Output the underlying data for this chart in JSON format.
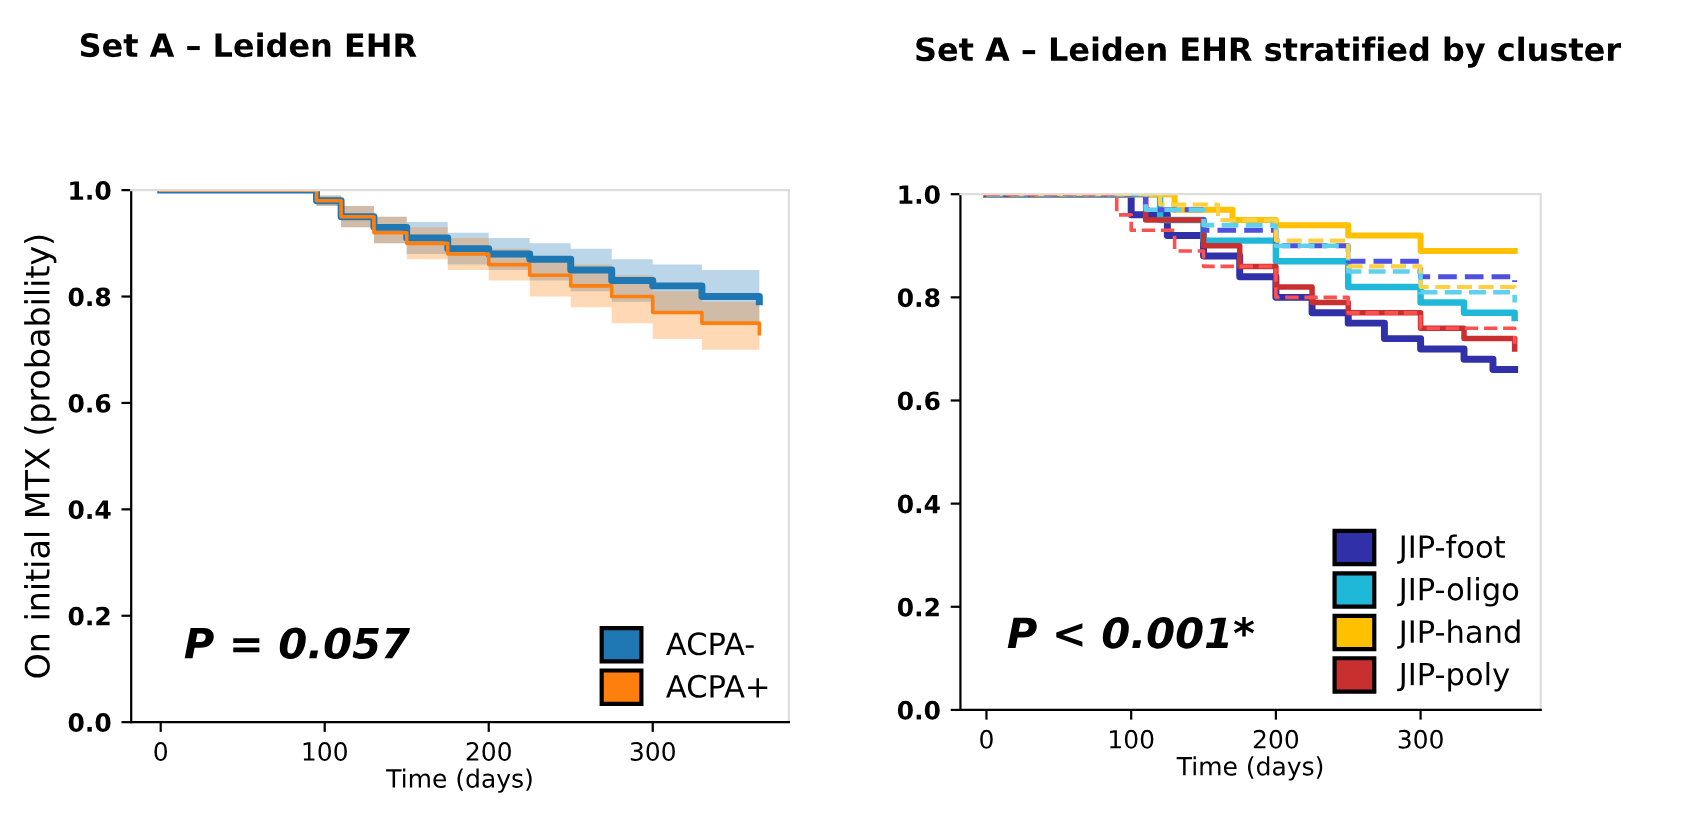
{
  "chart_data": [
    {
      "type": "step",
      "title": "Set A – Leiden EHR",
      "xlabel": "Time (days)",
      "ylabel": "On initial MTX (probability)",
      "xlim": [
        -18,
        383
      ],
      "ylim": [
        0.0,
        1.0
      ],
      "xticks": [
        0,
        100,
        200,
        300
      ],
      "yticks": [
        {
          "value": 0.0,
          "label": "0.0"
        },
        {
          "value": 0.2,
          "label": "0.2"
        },
        {
          "value": 0.4,
          "label": "0.4"
        },
        {
          "value": 0.6,
          "label": "0.6"
        },
        {
          "value": 0.8,
          "label": "0.8"
        },
        {
          "value": 1.0,
          "label": "1.0"
        }
      ],
      "grid": false,
      "legend": "bottom right",
      "annotations": [
        "P = 0.057"
      ],
      "series": [
        {
          "name": "ACPA-",
          "color": "#1f77b4",
          "x": [
            0,
            95,
            110,
            130,
            150,
            175,
            200,
            225,
            250,
            275,
            300,
            330,
            365
          ],
          "values": [
            1.0,
            0.98,
            0.95,
            0.93,
            0.91,
            0.89,
            0.88,
            0.87,
            0.85,
            0.83,
            0.82,
            0.8,
            0.79
          ],
          "lower": [
            1.0,
            0.97,
            0.93,
            0.9,
            0.88,
            0.86,
            0.85,
            0.83,
            0.81,
            0.79,
            0.77,
            0.75,
            0.74
          ],
          "upper": [
            1.0,
            0.99,
            0.97,
            0.95,
            0.94,
            0.92,
            0.91,
            0.9,
            0.89,
            0.87,
            0.86,
            0.85,
            0.84
          ]
        },
        {
          "name": "ACPA+",
          "color": "#ff7f0e",
          "x": [
            0,
            95,
            110,
            130,
            150,
            175,
            200,
            225,
            250,
            275,
            300,
            330,
            365
          ],
          "values": [
            1.0,
            0.98,
            0.95,
            0.92,
            0.9,
            0.88,
            0.86,
            0.84,
            0.82,
            0.8,
            0.77,
            0.75,
            0.73
          ],
          "lower": [
            1.0,
            0.97,
            0.93,
            0.9,
            0.87,
            0.85,
            0.83,
            0.8,
            0.78,
            0.75,
            0.72,
            0.7,
            0.69
          ],
          "upper": [
            1.0,
            0.99,
            0.97,
            0.95,
            0.93,
            0.91,
            0.89,
            0.87,
            0.86,
            0.84,
            0.81,
            0.79,
            0.77
          ]
        }
      ]
    },
    {
      "type": "step",
      "title": "Set A – Leiden EHR stratified by cluster",
      "xlabel": "Time (days)",
      "xlim": [
        -18,
        383
      ],
      "ylim": [
        0.0,
        1.0
      ],
      "xticks": [
        0,
        100,
        200,
        300
      ],
      "yticks": [
        {
          "value": 0.0,
          "label": "0.0"
        },
        {
          "value": 0.2,
          "label": "0.2"
        },
        {
          "value": 0.4,
          "label": "0.4"
        },
        {
          "value": 0.6,
          "label": "0.6"
        },
        {
          "value": 0.8,
          "label": "0.8"
        },
        {
          "value": 1.0,
          "label": "1.0"
        }
      ],
      "grid": false,
      "legend": "bottom right",
      "annotations": [
        "P < 0.001*"
      ],
      "series": [
        {
          "name": "JIP-foot",
          "color": "#3030a8",
          "line_style": "solid",
          "x": [
            0,
            100,
            125,
            150,
            175,
            200,
            225,
            250,
            275,
            300,
            330,
            350,
            365
          ],
          "values": [
            1.0,
            0.96,
            0.92,
            0.88,
            0.84,
            0.8,
            0.77,
            0.75,
            0.72,
            0.7,
            0.68,
            0.66,
            0.66
          ]
        },
        {
          "name": "JIP-oligo",
          "color": "#20b8d8",
          "line_style": "solid",
          "x": [
            0,
            120,
            150,
            200,
            250,
            300,
            330,
            365
          ],
          "values": [
            1.0,
            0.95,
            0.91,
            0.87,
            0.82,
            0.79,
            0.77,
            0.76
          ]
        },
        {
          "name": "JIP-hand",
          "color": "#ffc000",
          "line_style": "solid",
          "x": [
            0,
            130,
            170,
            200,
            250,
            300,
            365
          ],
          "values": [
            1.0,
            0.97,
            0.95,
            0.94,
            0.92,
            0.89,
            0.89
          ]
        },
        {
          "name": "JIP-poly",
          "color": "#c83030",
          "line_style": "solid",
          "x": [
            0,
            110,
            150,
            175,
            200,
            225,
            250,
            300,
            330,
            365
          ],
          "values": [
            1.0,
            0.95,
            0.9,
            0.86,
            0.82,
            0.79,
            0.77,
            0.74,
            0.72,
            0.7
          ]
        },
        {
          "color": "#5050e0",
          "line_style": "dashed",
          "x": [
            0,
            110,
            150,
            200,
            250,
            300,
            365
          ],
          "values": [
            1.0,
            0.97,
            0.93,
            0.9,
            0.87,
            0.84,
            0.83
          ]
        },
        {
          "color": "#60d0f0",
          "line_style": "dashed",
          "x": [
            0,
            110,
            150,
            200,
            250,
            300,
            365
          ],
          "values": [
            1.0,
            0.97,
            0.94,
            0.9,
            0.85,
            0.81,
            0.79
          ]
        },
        {
          "color": "#ffd040",
          "line_style": "dashed",
          "x": [
            0,
            120,
            160,
            200,
            250,
            300,
            365
          ],
          "values": [
            1.0,
            0.98,
            0.95,
            0.91,
            0.86,
            0.82,
            0.81
          ]
        },
        {
          "color": "#ff5050",
          "line_style": "dashed",
          "x": [
            0,
            90,
            100,
            130,
            150,
            200,
            250,
            300,
            365
          ],
          "values": [
            1.0,
            0.96,
            0.93,
            0.89,
            0.86,
            0.8,
            0.77,
            0.74,
            0.71
          ]
        }
      ]
    }
  ]
}
